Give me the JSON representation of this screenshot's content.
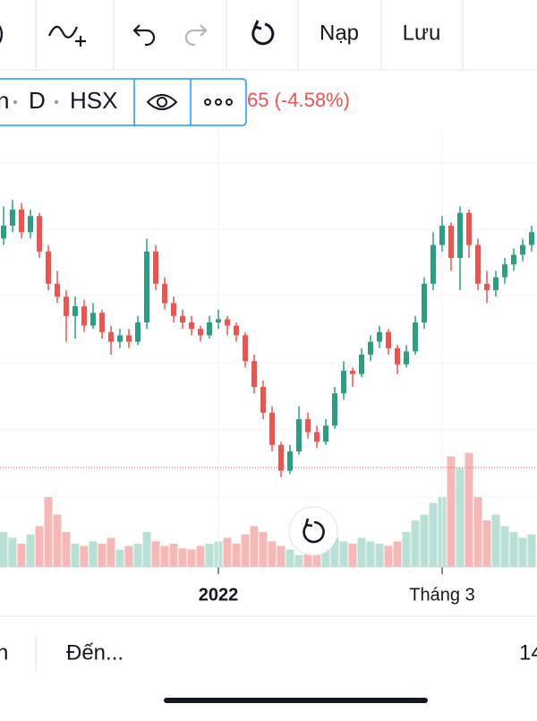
{
  "toolbar": {
    "left_cut": ")",
    "load": "Nạp",
    "save": "Lưu"
  },
  "symbol_bar": {
    "name_cut": "n",
    "interval": "D",
    "exchange": "HSX",
    "change": "65 (-4.58%)"
  },
  "bottom_bar": {
    "left_cut": "n",
    "to": "Đến...",
    "right_cut": "14"
  },
  "chart_data": {
    "type": "candlestick",
    "categories": [
      null,
      null,
      null,
      null,
      null,
      null,
      null,
      null,
      null,
      null,
      null,
      null,
      null,
      null,
      null,
      null,
      null,
      null,
      null,
      null,
      null,
      null,
      null,
      null,
      "2022",
      null,
      null,
      null,
      null,
      null,
      null,
      null,
      null,
      null,
      null,
      null,
      null,
      null,
      null,
      null,
      null,
      null,
      null,
      null,
      null,
      null,
      null,
      null,
      null,
      "Tháng 3",
      null,
      null,
      null,
      null,
      null,
      null,
      null,
      null,
      null,
      null
    ],
    "candles": [
      [
        76,
        86,
        74,
        80
      ],
      [
        80,
        88,
        78,
        85
      ],
      [
        85,
        87,
        76,
        78
      ],
      [
        78,
        85,
        76,
        83
      ],
      [
        83,
        84,
        70,
        72
      ],
      [
        72,
        74,
        60,
        62
      ],
      [
        62,
        66,
        56,
        58
      ],
      [
        58,
        60,
        44,
        52
      ],
      [
        52,
        58,
        45,
        55
      ],
      [
        55,
        57,
        47,
        49
      ],
      [
        49,
        56,
        48,
        53
      ],
      [
        53,
        54,
        45,
        47
      ],
      [
        47,
        49,
        40,
        44
      ],
      [
        44,
        48,
        42,
        46
      ],
      [
        46,
        48,
        42,
        44
      ],
      [
        44,
        52,
        43,
        50
      ],
      [
        50,
        76,
        48,
        72
      ],
      [
        72,
        74,
        60,
        62
      ],
      [
        62,
        64,
        54,
        56
      ],
      [
        56,
        58,
        50,
        52
      ],
      [
        52,
        54,
        48,
        50
      ],
      [
        50,
        52,
        46,
        48
      ],
      [
        48,
        49,
        44,
        46
      ],
      [
        46,
        52,
        45,
        50
      ],
      [
        50,
        54,
        48,
        51
      ],
      [
        51,
        52,
        46,
        49
      ],
      [
        49,
        50,
        44,
        46
      ],
      [
        46,
        47,
        36,
        38
      ],
      [
        38,
        40,
        28,
        30
      ],
      [
        30,
        32,
        20,
        22
      ],
      [
        22,
        24,
        10,
        12
      ],
      [
        12,
        13,
        2,
        4
      ],
      [
        4,
        12,
        3,
        10
      ],
      [
        10,
        24,
        9,
        20
      ],
      [
        20,
        22,
        14,
        16
      ],
      [
        16,
        18,
        11,
        13
      ],
      [
        13,
        20,
        12,
        18
      ],
      [
        18,
        30,
        17,
        28
      ],
      [
        28,
        38,
        26,
        35
      ],
      [
        35,
        36,
        30,
        34
      ],
      [
        34,
        42,
        33,
        40
      ],
      [
        40,
        46,
        38,
        44
      ],
      [
        44,
        49,
        42,
        47
      ],
      [
        47,
        48,
        40,
        42
      ],
      [
        42,
        43,
        34,
        37
      ],
      [
        37,
        43,
        36,
        41
      ],
      [
        41,
        52,
        40,
        50
      ],
      [
        50,
        64,
        48,
        62
      ],
      [
        62,
        78,
        60,
        74
      ],
      [
        74,
        83,
        72,
        80
      ],
      [
        80,
        81,
        66,
        70
      ],
      [
        70,
        86,
        60,
        84
      ],
      [
        84,
        85,
        70,
        74
      ],
      [
        74,
        76,
        60,
        62
      ],
      [
        62,
        66,
        56,
        60
      ],
      [
        60,
        66,
        58,
        64
      ],
      [
        64,
        70,
        62,
        68
      ],
      [
        68,
        73,
        66,
        71
      ],
      [
        71,
        76,
        69,
        74
      ],
      [
        74,
        80,
        72,
        78
      ]
    ],
    "volumes": [
      30,
      25,
      20,
      28,
      35,
      60,
      45,
      30,
      20,
      18,
      22,
      20,
      25,
      15,
      18,
      20,
      30,
      22,
      18,
      20,
      16,
      15,
      18,
      20,
      22,
      25,
      20,
      28,
      35,
      30,
      22,
      18,
      15,
      10,
      12,
      18,
      20,
      25,
      22,
      20,
      25,
      22,
      20,
      18,
      22,
      30,
      40,
      45,
      55,
      60,
      95,
      85,
      98,
      60,
      40,
      45,
      35,
      30,
      25,
      28
    ],
    "ylim": [
      0,
      100
    ],
    "volume_ylim": [
      0,
      100
    ],
    "price_line": 5,
    "up_color": "#2e9d84",
    "down_color": "#ef5350",
    "up_volume_color": "#b8e0d4",
    "down_volume_color": "#f6b8b6"
  }
}
